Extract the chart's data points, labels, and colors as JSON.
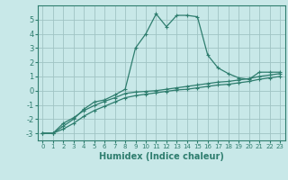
{
  "xlabel": "Humidex (Indice chaleur)",
  "background_color": "#c8e8e8",
  "grid_color": "#a0c4c4",
  "line_color": "#2e7d6e",
  "xlim": [
    -0.5,
    23.5
  ],
  "ylim": [
    -3.5,
    6.0
  ],
  "xticks": [
    0,
    1,
    2,
    3,
    4,
    5,
    6,
    7,
    8,
    9,
    10,
    11,
    12,
    13,
    14,
    15,
    16,
    17,
    18,
    19,
    20,
    21,
    22,
    23
  ],
  "yticks": [
    -3,
    -2,
    -1,
    0,
    1,
    2,
    3,
    4,
    5
  ],
  "line1_x": [
    0,
    1,
    2,
    3,
    4,
    5,
    6,
    7,
    8,
    9,
    10,
    11,
    12,
    13,
    14,
    15,
    16,
    17,
    18,
    19,
    20,
    21,
    22,
    23
  ],
  "line1_y": [
    -3.0,
    -3.0,
    -2.5,
    -2.0,
    -1.3,
    -0.8,
    -0.65,
    -0.3,
    0.1,
    3.0,
    4.0,
    5.4,
    4.5,
    5.3,
    5.3,
    5.2,
    2.5,
    1.6,
    1.2,
    0.9,
    0.8,
    1.3,
    1.3,
    1.3
  ],
  "line2_x": [
    0,
    1,
    2,
    3,
    4,
    5,
    6,
    7,
    8,
    9,
    10,
    11,
    12,
    13,
    14,
    15,
    16,
    17,
    18,
    19,
    20,
    21,
    22,
    23
  ],
  "line2_y": [
    -3.0,
    -3.0,
    -2.3,
    -1.9,
    -1.4,
    -1.05,
    -0.75,
    -0.5,
    -0.2,
    -0.1,
    -0.05,
    0.0,
    0.1,
    0.2,
    0.3,
    0.4,
    0.5,
    0.6,
    0.65,
    0.75,
    0.85,
    1.0,
    1.1,
    1.2
  ],
  "line3_x": [
    0,
    1,
    2,
    3,
    4,
    5,
    6,
    7,
    8,
    9,
    10,
    11,
    12,
    13,
    14,
    15,
    16,
    17,
    18,
    19,
    20,
    21,
    22,
    23
  ],
  "line3_y": [
    -3.0,
    -3.0,
    -2.7,
    -2.3,
    -1.8,
    -1.4,
    -1.1,
    -0.8,
    -0.5,
    -0.35,
    -0.25,
    -0.15,
    -0.05,
    0.05,
    0.1,
    0.2,
    0.3,
    0.4,
    0.45,
    0.55,
    0.65,
    0.8,
    0.9,
    1.0
  ]
}
